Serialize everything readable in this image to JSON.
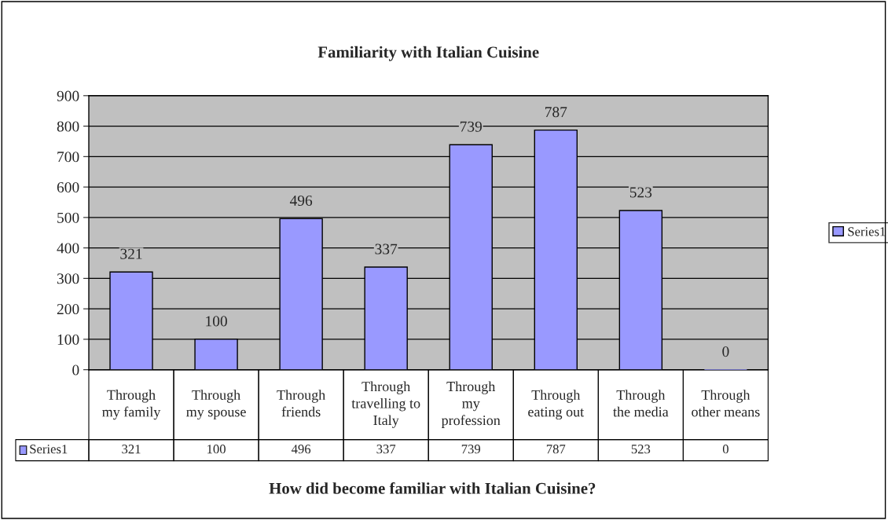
{
  "chart_data": {
    "type": "bar",
    "title": "Familiarity with Italian Cuisine",
    "xlabel": "How did become familiar with Italian Cuisine?",
    "categories": [
      "Through\nmy family",
      "Through\nmy spouse",
      "Through\nfriends",
      "Through\ntravelling to\nItaly",
      "Through\nmy\nprofession",
      "Through\neating out",
      "Through\nthe media",
      "Through\nother means"
    ],
    "series": [
      {
        "name": "Series1",
        "color": "#9999ff",
        "values": [
          321,
          100,
          496,
          337,
          739,
          787,
          523,
          0
        ],
        "value_labels": [
          "321",
          "100",
          "496",
          "337",
          "739",
          "787",
          "523",
          "0"
        ]
      }
    ],
    "ylim": [
      0,
      900
    ],
    "yticks": [
      0,
      100,
      200,
      300,
      400,
      500,
      600,
      700,
      800,
      900
    ],
    "annotations": [
      "Series1",
      "321",
      "100",
      "496",
      "337",
      "739",
      "787",
      "523",
      "0"
    ],
    "grid": "y",
    "legend": "right"
  }
}
